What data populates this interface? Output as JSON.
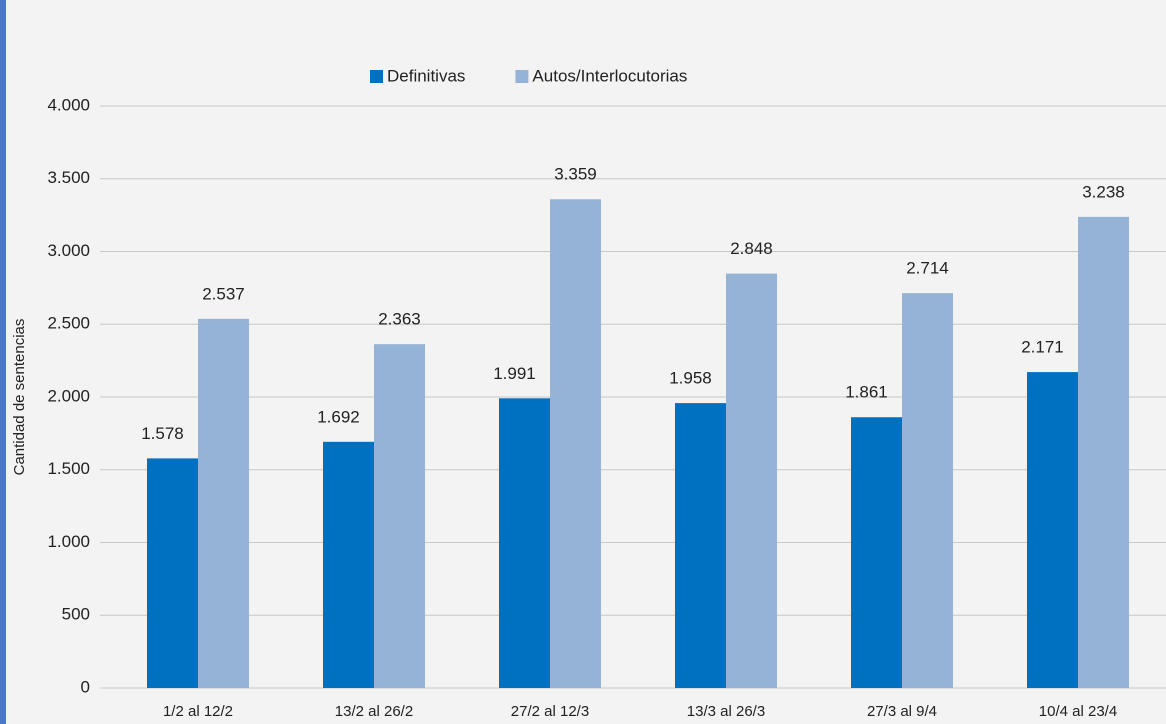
{
  "chart_data": {
    "type": "bar",
    "y_label": "Cantidad de sentencias",
    "categories": [
      "1/2 al 12/2",
      "13/2 al 26/2",
      "27/2 al 12/3",
      "13/3 al 26/3",
      "27/3 al 9/4",
      "10/4 al 23/4"
    ],
    "series": [
      {
        "name": "Definitivas",
        "color": "#0070c0",
        "values": [
          1578,
          1692,
          1991,
          1958,
          1861,
          2171
        ],
        "value_labels": [
          "1.578",
          "1.692",
          "1.991",
          "1.958",
          "1.861",
          "2.171"
        ]
      },
      {
        "name": "Autos/Interlocutorias",
        "color": "#95b3d7",
        "values": [
          2537,
          2363,
          3359,
          2848,
          2714,
          3238
        ],
        "value_labels": [
          "2.537",
          "2.363",
          "3.359",
          "2.848",
          "2.714",
          "3.238"
        ]
      }
    ],
    "ylim": [
      0,
      4000
    ],
    "yticks": [
      0,
      500,
      {
        "value": 1000,
        "label": "1.000"
      },
      {
        "value": 1500,
        "label": "1.500"
      },
      {
        "value": 2000,
        "label": "2.000"
      },
      {
        "value": 2500,
        "label": "2.500"
      },
      {
        "value": 3000,
        "label": "3.000"
      },
      {
        "value": 3500,
        "label": "3.500"
      },
      {
        "value": 4000,
        "label": "4.000"
      }
    ],
    "grid": true,
    "legend": "top"
  }
}
